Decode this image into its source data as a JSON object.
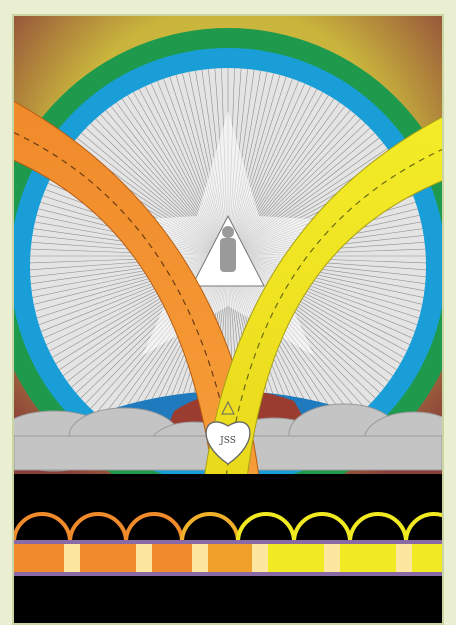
{
  "artwork": {
    "heart_monogram": "JSS",
    "colors": {
      "outer_ring_yellow": "#d6c243",
      "outer_ring_green": "#1f9a4c",
      "outer_ring_blue": "#199ed8",
      "halo_gray": "#d6d6d6",
      "left_arc_orange": "#f08a2a",
      "right_arc_yellow": "#f1ea22",
      "earth_blue": "#1f7bbd",
      "earth_red": "#9b3c31",
      "clouds": "#bcbcbc",
      "band_purple": "#8a6aa6",
      "background_black": "#000000"
    }
  }
}
